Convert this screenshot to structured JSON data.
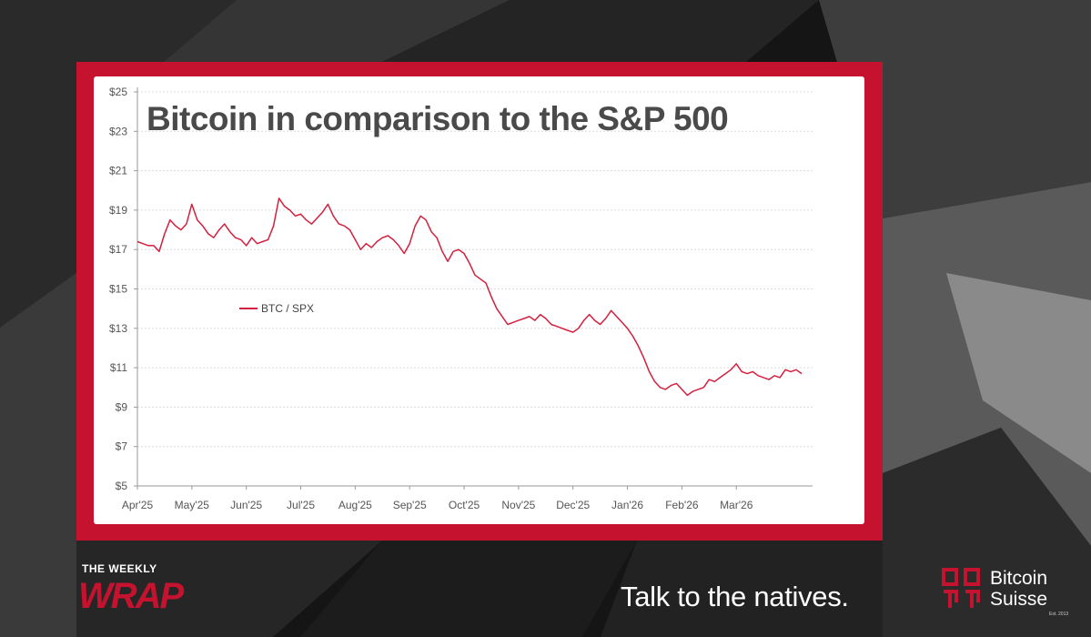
{
  "chart_data": {
    "type": "line",
    "title": "Bitcoin in comparison to the S&P 500",
    "xlabel": "",
    "ylabel": "",
    "ylim": [
      5,
      25
    ],
    "y_ticks": [
      5,
      7,
      9,
      11,
      13,
      15,
      17,
      19,
      21,
      23,
      25
    ],
    "y_tick_labels": [
      "$5",
      "$7",
      "$9",
      "$11",
      "$13",
      "$15",
      "$17",
      "$19",
      "$21",
      "$23",
      "$25"
    ],
    "categories": [
      "Apr'25",
      "May'25",
      "Jun'25",
      "Jul'25",
      "Aug'25",
      "Sep'25",
      "Oct'25",
      "Nov'25",
      "Dec'25",
      "Jan'26",
      "Feb'26",
      "Mar'26"
    ],
    "x_range": [
      0,
      12.4
    ],
    "grid": true,
    "legend_position": "middle-left",
    "series": [
      {
        "name": "BTC / SPX",
        "color": "#d41f3e",
        "x": [
          0,
          0.1,
          0.2,
          0.3,
          0.4,
          0.5,
          0.6,
          0.7,
          0.8,
          0.9,
          1.0,
          1.1,
          1.2,
          1.3,
          1.4,
          1.5,
          1.6,
          1.7,
          1.8,
          1.9,
          2.0,
          2.1,
          2.2,
          2.3,
          2.4,
          2.5,
          2.6,
          2.7,
          2.8,
          2.9,
          3.0,
          3.1,
          3.2,
          3.3,
          3.4,
          3.5,
          3.6,
          3.7,
          3.8,
          3.9,
          4.0,
          4.1,
          4.2,
          4.3,
          4.4,
          4.5,
          4.6,
          4.7,
          4.8,
          4.9,
          5.0,
          5.1,
          5.2,
          5.3,
          5.4,
          5.5,
          5.6,
          5.7,
          5.8,
          5.9,
          6.0,
          6.1,
          6.2,
          6.3,
          6.4,
          6.5,
          6.6,
          6.7,
          6.8,
          6.9,
          7.0,
          7.1,
          7.2,
          7.3,
          7.4,
          7.5,
          7.6,
          7.7,
          7.8,
          7.9,
          8.0,
          8.1,
          8.2,
          8.3,
          8.4,
          8.5,
          8.6,
          8.7,
          8.8,
          8.9,
          9.0,
          9.1,
          9.2,
          9.3,
          9.4,
          9.5,
          9.6,
          9.7,
          9.8,
          9.9,
          10.0,
          10.1,
          10.2,
          10.3,
          10.4,
          10.5,
          10.6,
          10.7,
          10.8,
          10.9,
          11.0,
          11.1,
          11.2,
          11.3,
          11.4,
          11.5,
          11.6,
          11.7,
          11.8,
          11.9,
          12.0,
          12.1,
          12.2
        ],
        "values": [
          17.4,
          17.3,
          17.2,
          17.2,
          16.9,
          17.8,
          18.5,
          18.2,
          18.0,
          18.3,
          19.3,
          18.5,
          18.2,
          17.8,
          17.6,
          18.0,
          18.3,
          17.9,
          17.6,
          17.5,
          17.2,
          17.6,
          17.3,
          17.4,
          17.5,
          18.2,
          19.6,
          19.2,
          19.0,
          18.7,
          18.8,
          18.5,
          18.3,
          18.6,
          18.9,
          19.3,
          18.7,
          18.3,
          18.2,
          18.0,
          17.5,
          17.0,
          17.3,
          17.1,
          17.4,
          17.6,
          17.7,
          17.5,
          17.2,
          16.8,
          17.3,
          18.2,
          18.7,
          18.5,
          17.9,
          17.6,
          16.9,
          16.4,
          16.9,
          17.0,
          16.8,
          16.3,
          15.7,
          15.5,
          15.3,
          14.6,
          14.0,
          13.6,
          13.2,
          13.3,
          13.4,
          13.5,
          13.6,
          13.4,
          13.7,
          13.5,
          13.2,
          13.1,
          13.0,
          12.9,
          12.8,
          13.0,
          13.4,
          13.7,
          13.4,
          13.2,
          13.5,
          13.9,
          13.6,
          13.3,
          13.0,
          12.6,
          12.1,
          11.5,
          10.8,
          10.3,
          10.0,
          9.9,
          10.1,
          10.2,
          9.9,
          9.6,
          9.8,
          9.9,
          10.0,
          10.4,
          10.3,
          10.5,
          10.7,
          10.9,
          11.2,
          10.8,
          10.7,
          10.8,
          10.6,
          10.5,
          10.4,
          10.6,
          10.5,
          10.9,
          10.8,
          10.9,
          10.7
        ]
      }
    ]
  },
  "branding": {
    "wrap_kicker": "THE WEEKLY",
    "wrap_word": "WRAP",
    "tagline": "Talk to the natives.",
    "brand_line1": "Bitcoin",
    "brand_line2": "Suisse",
    "brand_est": "Est. 2013",
    "accent_color": "#c4122f"
  }
}
